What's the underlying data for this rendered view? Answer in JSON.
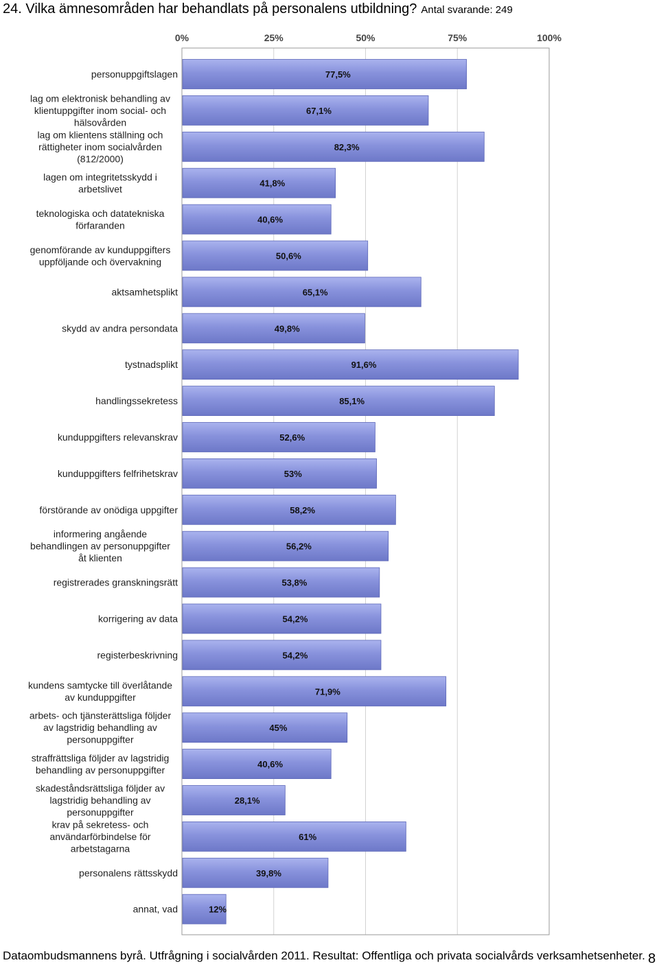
{
  "header": {
    "question": "24. Vilka ämnesområden har behandlats på personalens utbildning?",
    "respondents": "Antal svarande: 249"
  },
  "chart_data": {
    "type": "bar",
    "orientation": "horizontal",
    "unit": "%",
    "xlim": [
      0,
      100
    ],
    "xticks": [
      "0%",
      "25%",
      "50%",
      "75%",
      "100%"
    ],
    "grid": true,
    "categories": [
      [
        "personuppgiftslagen"
      ],
      [
        "lag om elektronisk behandling av",
        "klientuppgifter inom social- och",
        "hälsovården"
      ],
      [
        "lag om klientens ställning och",
        "rättigheter inom socialvården",
        "(812/2000)"
      ],
      [
        "lagen om integritetsskydd i",
        "arbetslivet"
      ],
      [
        "teknologiska och datatekniska",
        "förfaranden"
      ],
      [
        "genomförande av kunduppgifters",
        "uppföljande och övervakning"
      ],
      [
        "aktsamhetsplikt"
      ],
      [
        "skydd av andra persondata"
      ],
      [
        "tystnadsplikt"
      ],
      [
        "handlingssekretess"
      ],
      [
        "kunduppgifters relevanskrav"
      ],
      [
        "kunduppgifters felfrihetskrav"
      ],
      [
        "förstörande av onödiga uppgifter"
      ],
      [
        "informering angående",
        "behandlingen av personuppgifter",
        "åt klienten"
      ],
      [
        "registrerades granskningsrätt"
      ],
      [
        "korrigering av data"
      ],
      [
        "registerbeskrivning"
      ],
      [
        "kundens samtycke till överlåtande",
        "av kunduppgifter"
      ],
      [
        "arbets- och tjänsterättsliga följder",
        "av lagstridig behandling av",
        "personuppgifter"
      ],
      [
        "straffrättsliga följder av lagstridig",
        "behandling av personuppgifter"
      ],
      [
        "skadeståndsrättsliga följder av",
        "lagstridig behandling av",
        "personuppgifter"
      ],
      [
        "krav på sekretess- och",
        "användarförbindelse för",
        "arbetstagarna"
      ],
      [
        "personalens rättsskydd"
      ],
      [
        "annat, vad"
      ]
    ],
    "values": [
      77.5,
      67.1,
      82.3,
      41.8,
      40.6,
      50.6,
      65.1,
      49.8,
      91.6,
      85.1,
      52.6,
      53,
      58.2,
      56.2,
      53.8,
      54.2,
      54.2,
      71.9,
      45,
      40.6,
      28.1,
      61,
      39.8,
      12
    ],
    "value_labels": [
      "77,5%",
      "67,1%",
      "82,3%",
      "41,8%",
      "40,6%",
      "50,6%",
      "65,1%",
      "49,8%",
      "91,6%",
      "85,1%",
      "52,6%",
      "53%",
      "58,2%",
      "56,2%",
      "53,8%",
      "54,2%",
      "54,2%",
      "71,9%",
      "45%",
      "40,6%",
      "28,1%",
      "61%",
      "39,8%",
      "12%"
    ],
    "bar_color": "#7f8bd6"
  },
  "footer": {
    "source": "Dataombudsmannens byrå. Utfrågning i socialvården 2011. Resultat: Offentliga och privata socialvårds verksamhetsenheter.",
    "page_number": "8"
  }
}
